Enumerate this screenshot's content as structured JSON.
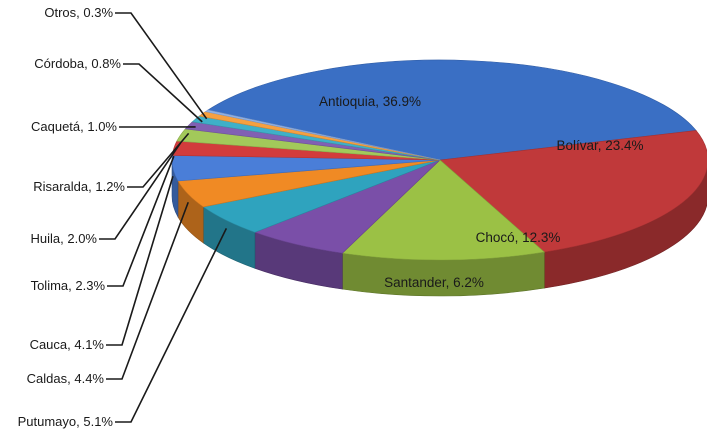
{
  "chart_data": {
    "type": "pie",
    "style": "3d-exploded-pie",
    "title": "",
    "legend": "none",
    "slices": [
      {
        "name": "Antioquia",
        "value": 36.9,
        "label": "Antioquia, 36.9%",
        "color": "#3a6fc4"
      },
      {
        "name": "Bolívar",
        "value": 23.4,
        "label": "Bolívar, 23.4%",
        "color": "#c0393a"
      },
      {
        "name": "Chocó",
        "value": 12.3,
        "label": "Chocó, 12.3%",
        "color": "#9bc145"
      },
      {
        "name": "Santander",
        "value": 6.2,
        "label": "Santander, 6.2%",
        "color": "#7a4fa8"
      },
      {
        "name": "Putumayo",
        "value": 5.1,
        "label": "Putumayo, 5.1%",
        "color": "#2fa3be"
      },
      {
        "name": "Caldas",
        "value": 4.4,
        "label": "Caldas, 4.4%",
        "color": "#f08a24"
      },
      {
        "name": "Cauca",
        "value": 4.1,
        "label": "Cauca, 4.1%",
        "color": "#4a7ed8"
      },
      {
        "name": "Tolima",
        "value": 2.3,
        "label": "Tolima, 2.3%",
        "color": "#d23c3c"
      },
      {
        "name": "Huila",
        "value": 2.0,
        "label": "Huila, 2.0%",
        "color": "#a2c95a"
      },
      {
        "name": "Risaralda",
        "value": 1.2,
        "label": "Risaralda, 1.2%",
        "color": "#8160b3"
      },
      {
        "name": "Caquetá",
        "value": 1.0,
        "label": "Caquetá, 1.0%",
        "color": "#3fb0c8"
      },
      {
        "name": "Córdoba",
        "value": 0.8,
        "label": "Córdoba, 0.8%",
        "color": "#f5a040"
      },
      {
        "name": "Otros",
        "value": 0.3,
        "label": "Otros, 0.3%",
        "color": "#8fb1e6"
      }
    ]
  }
}
